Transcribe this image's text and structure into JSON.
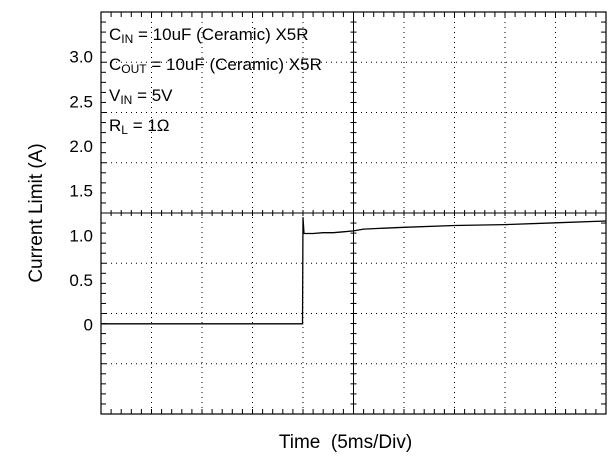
{
  "chart_data": {
    "type": "line",
    "title": "",
    "xlabel": "Time  (5ms/Div)",
    "ylabel": "Current Limit (A)",
    "xlim": [
      0,
      50
    ],
    "ylim": [
      -1.0,
      3.5
    ],
    "y_ticks": [
      {
        "value": 0,
        "label": "0"
      },
      {
        "value": 0.5,
        "label": "0.5"
      },
      {
        "value": 1.0,
        "label": "1.0"
      },
      {
        "value": 1.5,
        "label": "1.5"
      },
      {
        "value": 2.0,
        "label": "2.0"
      },
      {
        "value": 2.5,
        "label": "2.5"
      },
      {
        "value": 3.0,
        "label": "3.0"
      }
    ],
    "grid": true,
    "annotations": [
      {
        "main": "C",
        "sub": "IN",
        "rest": " = 10uF (Ceramic) X5R"
      },
      {
        "main": "C",
        "sub": "OUT",
        "rest": " = 10uF (Ceramic) X5R"
      },
      {
        "main": "V",
        "sub": "IN",
        "rest": " = 5V"
      },
      {
        "main": "R",
        "sub": "L",
        "rest": " = 1Ω"
      }
    ],
    "series": [
      {
        "x": [
          0,
          5,
          10,
          15,
          19.95,
          20.0,
          20.1,
          20.5,
          21,
          22,
          23,
          24,
          25,
          26,
          30,
          35,
          40,
          45,
          50
        ],
        "y": [
          0.01,
          0.01,
          0.01,
          0.01,
          0.01,
          1.2,
          1.02,
          1.02,
          1.02,
          1.03,
          1.03,
          1.04,
          1.05,
          1.07,
          1.09,
          1.11,
          1.12,
          1.14,
          1.16
        ]
      }
    ],
    "line_color": "#000000"
  }
}
